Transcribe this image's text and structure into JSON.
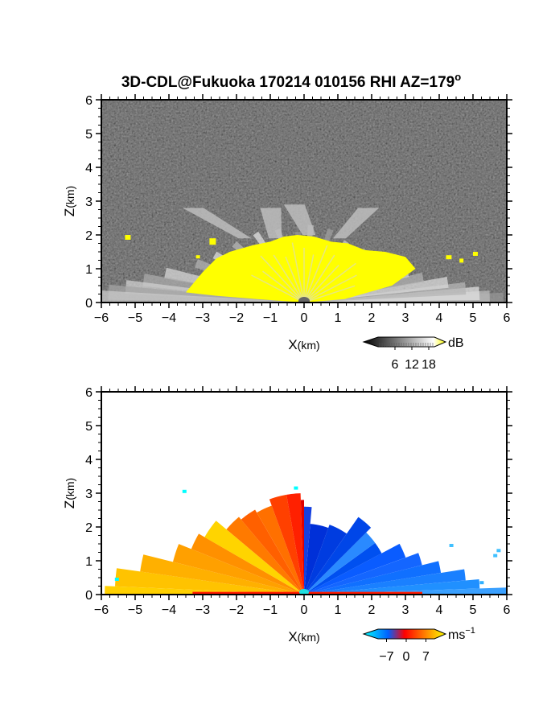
{
  "chart_data": [
    {
      "type": "heatmap",
      "title": "3D-CDL@Fukuoka 170214 010156 RHI AZ=179",
      "title_superscript": "o",
      "xlabel_main": "X",
      "xlabel_unit": "(km)",
      "ylabel_main": "Z",
      "ylabel_unit": "(km)",
      "xlim": [
        -6,
        6
      ],
      "ylim": [
        0,
        6
      ],
      "xticks": [
        "−6",
        "−5",
        "−4",
        "−3",
        "−2",
        "−1",
        "0",
        "1",
        "2",
        "3",
        "4",
        "5",
        "6"
      ],
      "yticks": [
        "0",
        "1",
        "2",
        "3",
        "4",
        "5",
        "6"
      ],
      "colorbar": {
        "unit": "dB",
        "ticks": [
          "6",
          "12",
          "18"
        ],
        "range": [
          0,
          20
        ],
        "colors": [
          "#000000",
          "#ffffff",
          "#ffff00"
        ]
      },
      "highlight_color": "#ffff00"
    },
    {
      "type": "heatmap",
      "title": "",
      "xlabel_main": "X",
      "xlabel_unit": "(km)",
      "ylabel_main": "Z",
      "ylabel_unit": "(km)",
      "xlim": [
        -6,
        6
      ],
      "ylim": [
        0,
        6
      ],
      "xticks": [
        "−6",
        "−5",
        "−4",
        "−3",
        "−2",
        "−1",
        "0",
        "1",
        "2",
        "3",
        "4",
        "5",
        "6"
      ],
      "yticks": [
        "0",
        "1",
        "2",
        "3",
        "4",
        "5",
        "6"
      ],
      "colorbar": {
        "unit_main": "ms",
        "unit_exp": "−1",
        "ticks": [
          "−7",
          "0",
          "7"
        ],
        "range": [
          -10,
          10
        ],
        "colors": [
          "#00ffff",
          "#0060ff",
          "#ff0000",
          "#ff8000",
          "#ffff00"
        ]
      }
    }
  ]
}
